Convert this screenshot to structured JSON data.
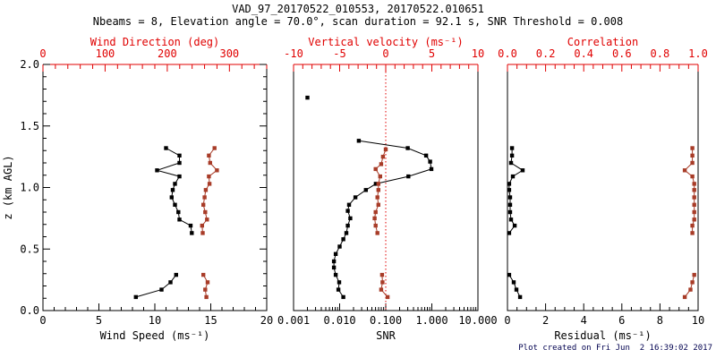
{
  "header": {
    "title": "VAD_97_20170522_010553, 20170522.010651",
    "subtitle": "Nbeams = 8, Elevation angle = 70.0°, scan duration = 92.1 s, SNR Threshold = 0.008"
  },
  "footer": {
    "created": "Plot created on Fri Jun  2 16:39:02 2017"
  },
  "chart_data": {
    "type": "scatter",
    "description": "Three-panel VAD lidar wind profile: markers joined by lines, height z on shared y-axis",
    "colors": {
      "data_black": "#000000",
      "data_red": "#a83c28",
      "axis_red": "#e00000",
      "axis_black": "#000000",
      "timestamp_blue": "#00004f"
    },
    "z_axis": {
      "label": "z (km AGL)",
      "range": [
        0,
        2
      ],
      "major_ticks": [
        0.0,
        0.5,
        1.0,
        1.5,
        2.0
      ],
      "tick_labels": [
        "0.0",
        "0.5",
        "1.0",
        "1.5",
        "2.0"
      ],
      "minor_step": 0.1
    },
    "panels": [
      {
        "name": "wind",
        "y_ticks": true,
        "bottom": {
          "title": "Wind Speed (ms⁻¹)",
          "scale": "linear",
          "range": [
            0,
            20
          ],
          "majors": [
            0,
            5,
            10,
            15,
            20
          ],
          "labels": [
            "0",
            "5",
            "10",
            "15",
            "20"
          ],
          "minor_step": 1
        },
        "top": {
          "title": "Wind Direction (deg)",
          "scale": "linear",
          "range": [
            0,
            360
          ],
          "majors": [
            0,
            100,
            200,
            300
          ],
          "labels": [
            "0",
            "100",
            "200",
            "300"
          ],
          "minor_step": 20
        },
        "series": [
          {
            "name": "wind-speed",
            "axis": "bottom",
            "color": "data_black",
            "segments": [
              [
                [
                  1.32,
                  11.0
                ],
                [
                  1.26,
                  12.2
                ],
                [
                  1.2,
                  12.2
                ],
                [
                  1.14,
                  10.2
                ],
                [
                  1.09,
                  12.2
                ],
                [
                  1.03,
                  11.8
                ],
                [
                  0.98,
                  11.6
                ],
                [
                  0.92,
                  11.5
                ],
                [
                  0.86,
                  11.8
                ],
                [
                  0.8,
                  12.1
                ],
                [
                  0.74,
                  12.2
                ],
                [
                  0.69,
                  13.2
                ],
                [
                  0.63,
                  13.3
                ]
              ],
              [
                [
                  0.29,
                  11.9
                ],
                [
                  0.23,
                  11.4
                ],
                [
                  0.17,
                  10.6
                ],
                [
                  0.11,
                  8.3
                ]
              ]
            ]
          },
          {
            "name": "wind-direction",
            "axis": "top",
            "color": "data_red",
            "segments": [
              [
                [
                  1.32,
                  276
                ],
                [
                  1.26,
                  267
                ],
                [
                  1.2,
                  269
                ],
                [
                  1.14,
                  280
                ],
                [
                  1.09,
                  267
                ],
                [
                  1.03,
                  268
                ],
                [
                  0.98,
                  262
                ],
                [
                  0.92,
                  260
                ],
                [
                  0.86,
                  258
                ],
                [
                  0.8,
                  261
                ],
                [
                  0.74,
                  264
                ],
                [
                  0.69,
                  256
                ],
                [
                  0.63,
                  257
                ]
              ],
              [
                [
                  0.29,
                  258
                ],
                [
                  0.23,
                  265
                ],
                [
                  0.17,
                  261
                ],
                [
                  0.11,
                  263
                ]
              ]
            ]
          }
        ]
      },
      {
        "name": "snr",
        "y_ticks": false,
        "zero_line": true,
        "bottom": {
          "title": "SNR",
          "scale": "log",
          "range": [
            0.001,
            10
          ],
          "majors": [
            0.001,
            0.01,
            0.1,
            1,
            10
          ],
          "labels": [
            "0.001",
            "0.010",
            "0.100",
            "1.000",
            "10.000"
          ]
        },
        "top": {
          "title": "Vertical velocity (ms⁻¹)",
          "scale": "linear",
          "range": [
            -10,
            10
          ],
          "majors": [
            -10,
            -5,
            0,
            5,
            10
          ],
          "labels": [
            "-10",
            "-5",
            "0",
            "5",
            "10"
          ],
          "minor_step": 1
        },
        "series": [
          {
            "name": "snr",
            "axis": "bottom",
            "color": "data_black",
            "points": [
              [
                1.73,
                0.002
              ]
            ],
            "segments": [
              [
                [
                  1.38,
                  0.026
                ],
                [
                  1.32,
                  0.3
                ],
                [
                  1.26,
                  0.75
                ],
                [
                  1.21,
                  0.92
                ],
                [
                  1.15,
                  0.98
                ],
                [
                  1.09,
                  0.31
                ],
                [
                  1.03,
                  0.061
                ],
                [
                  0.98,
                  0.037
                ],
                [
                  0.92,
                  0.022
                ],
                [
                  0.86,
                  0.016
                ],
                [
                  0.81,
                  0.015
                ],
                [
                  0.75,
                  0.017
                ],
                [
                  0.69,
                  0.015
                ],
                [
                  0.63,
                  0.014
                ],
                [
                  0.58,
                  0.012
                ],
                [
                  0.52,
                  0.01
                ],
                [
                  0.46,
                  0.0082
                ],
                [
                  0.4,
                  0.0075
                ],
                [
                  0.35,
                  0.0075
                ],
                [
                  0.29,
                  0.0082
                ],
                [
                  0.23,
                  0.0098
                ],
                [
                  0.17,
                  0.0094
                ],
                [
                  0.11,
                  0.012
                ]
              ]
            ]
          },
          {
            "name": "vertical-velocity",
            "axis": "top",
            "color": "data_red",
            "segments": [
              [
                [
                  1.31,
                  0.0
                ],
                [
                  1.25,
                  -0.3
                ],
                [
                  1.19,
                  -0.5
                ],
                [
                  1.15,
                  -1.1
                ],
                [
                  1.09,
                  -0.6
                ],
                [
                  1.03,
                  -0.8
                ],
                [
                  0.98,
                  -0.8
                ],
                [
                  0.92,
                  -0.9
                ],
                [
                  0.86,
                  -0.8
                ],
                [
                  0.8,
                  -1.1
                ],
                [
                  0.75,
                  -1.2
                ],
                [
                  0.69,
                  -1.1
                ],
                [
                  0.63,
                  -0.9
                ]
              ],
              [
                [
                  0.29,
                  -0.4
                ],
                [
                  0.23,
                  -0.35
                ],
                [
                  0.17,
                  -0.5
                ],
                [
                  0.11,
                  0.2
                ]
              ]
            ]
          }
        ]
      },
      {
        "name": "residual",
        "y_ticks": false,
        "bottom": {
          "title": "Residual (ms⁻¹)",
          "scale": "linear",
          "range": [
            0,
            10
          ],
          "majors": [
            0,
            2,
            4,
            6,
            8,
            10
          ],
          "labels": [
            "0",
            "2",
            "4",
            "6",
            "8",
            "10"
          ],
          "minor_step": 0.5
        },
        "top": {
          "title": "Correlation",
          "scale": "linear",
          "range": [
            0,
            1
          ],
          "majors": [
            0,
            0.2,
            0.4,
            0.6,
            0.8,
            1.0
          ],
          "labels": [
            "0.0",
            "0.2",
            "0.4",
            "0.6",
            "0.8",
            "1.0"
          ],
          "minor_step": 0.05
        },
        "series": [
          {
            "name": "residual",
            "axis": "bottom",
            "color": "data_black",
            "segments": [
              [
                [
                  1.32,
                  0.24
                ],
                [
                  1.26,
                  0.24
                ],
                [
                  1.2,
                  0.19
                ],
                [
                  1.14,
                  0.8
                ],
                [
                  1.09,
                  0.28
                ],
                [
                  1.03,
                  0.09
                ],
                [
                  0.98,
                  0.09
                ],
                [
                  0.92,
                  0.14
                ],
                [
                  0.86,
                  0.14
                ],
                [
                  0.8,
                  0.14
                ],
                [
                  0.74,
                  0.19
                ],
                [
                  0.69,
                  0.38
                ],
                [
                  0.63,
                  0.09
                ]
              ],
              [
                [
                  0.29,
                  0.09
                ],
                [
                  0.23,
                  0.33
                ],
                [
                  0.17,
                  0.47
                ],
                [
                  0.11,
                  0.66
                ]
              ]
            ]
          },
          {
            "name": "correlation",
            "axis": "top",
            "color": "data_red",
            "segments": [
              [
                [
                  1.32,
                  0.97
                ],
                [
                  1.26,
                  0.97
                ],
                [
                  1.2,
                  0.97
                ],
                [
                  1.14,
                  0.93
                ],
                [
                  1.09,
                  0.97
                ],
                [
                  1.03,
                  0.98
                ],
                [
                  0.98,
                  0.98
                ],
                [
                  0.92,
                  0.98
                ],
                [
                  0.86,
                  0.98
                ],
                [
                  0.8,
                  0.98
                ],
                [
                  0.74,
                  0.98
                ],
                [
                  0.69,
                  0.97
                ],
                [
                  0.63,
                  0.97
                ]
              ],
              [
                [
                  0.29,
                  0.98
                ],
                [
                  0.23,
                  0.97
                ],
                [
                  0.17,
                  0.96
                ],
                [
                  0.11,
                  0.93
                ]
              ]
            ]
          }
        ]
      }
    ]
  }
}
